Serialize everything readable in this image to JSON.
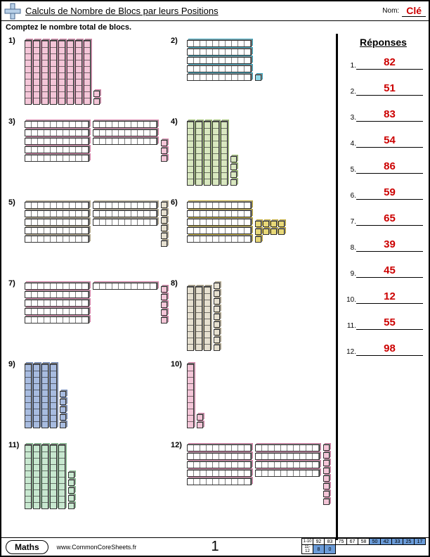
{
  "header": {
    "title": "Calculs de Nombre de Blocs par leurs Positions",
    "name_label": "Nom:",
    "key_label": "Clé"
  },
  "instruction": "Comptez le nombre total de blocs.",
  "answers_title": "Réponses",
  "answers": [
    {
      "n": "1.",
      "v": "82"
    },
    {
      "n": "2.",
      "v": "51"
    },
    {
      "n": "3.",
      "v": "83"
    },
    {
      "n": "4.",
      "v": "54"
    },
    {
      "n": "5.",
      "v": "86"
    },
    {
      "n": "6.",
      "v": "59"
    },
    {
      "n": "7.",
      "v": "65"
    },
    {
      "n": "8.",
      "v": "39"
    },
    {
      "n": "9.",
      "v": "45"
    },
    {
      "n": "10.",
      "v": "12"
    },
    {
      "n": "11.",
      "v": "55"
    },
    {
      "n": "12.",
      "v": "98"
    }
  ],
  "problems": [
    {
      "n": "1)",
      "tens": 8,
      "ones": 2,
      "orient": "v",
      "c1": "#f4c6d8",
      "c2": "#d97fa8"
    },
    {
      "n": "2)",
      "tens": 5,
      "ones": 1,
      "orient": "h",
      "c1": "#8fd9e8",
      "c2": "#35a5be"
    },
    {
      "n": "3)",
      "tens": 8,
      "ones": 3,
      "orient": "h",
      "c1": "#f4c6d8",
      "c2": "#d97fa8"
    },
    {
      "n": "4)",
      "tens": 5,
      "ones": 4,
      "orient": "v",
      "c1": "#d9e8c0",
      "c2": "#9bbf6b"
    },
    {
      "n": "5)",
      "tens": 8,
      "ones": 6,
      "orient": "h",
      "c1": "#e6e0d0",
      "c2": "#b5a98a"
    },
    {
      "n": "6)",
      "tens": 5,
      "ones": 9,
      "orient": "h",
      "c1": "#e8d878",
      "c2": "#c0a830"
    },
    {
      "n": "7)",
      "tens": 6,
      "ones": 5,
      "orient": "h",
      "c1": "#f4c6d8",
      "c2": "#d97fa8"
    },
    {
      "n": "8)",
      "tens": 3,
      "ones": 9,
      "orient": "v",
      "c1": "#e6e0d0",
      "c2": "#b5a98a"
    },
    {
      "n": "9)",
      "tens": 4,
      "ones": 5,
      "orient": "v",
      "c1": "#a8bce0",
      "c2": "#6b85b8"
    },
    {
      "n": "10)",
      "tens": 1,
      "ones": 2,
      "orient": "v",
      "c1": "#f4c6d8",
      "c2": "#d97fa8"
    },
    {
      "n": "11)",
      "tens": 5,
      "ones": 5,
      "orient": "v",
      "c1": "#c8e8d0",
      "c2": "#85c090"
    },
    {
      "n": "12)",
      "tens": 9,
      "ones": 8,
      "orient": "h",
      "c1": "#f4c6d8",
      "c2": "#d97fa8"
    }
  ],
  "footer": {
    "subject": "Maths",
    "url": "www.CommonCoreSheets.fr",
    "page": "1",
    "score_labels": [
      "1-10",
      "11-12"
    ],
    "scores_row1": [
      "92",
      "83",
      "75",
      "67",
      "58",
      "50",
      "42",
      "33",
      "25",
      "17"
    ],
    "scores_row2": [
      "8",
      "0"
    ]
  }
}
